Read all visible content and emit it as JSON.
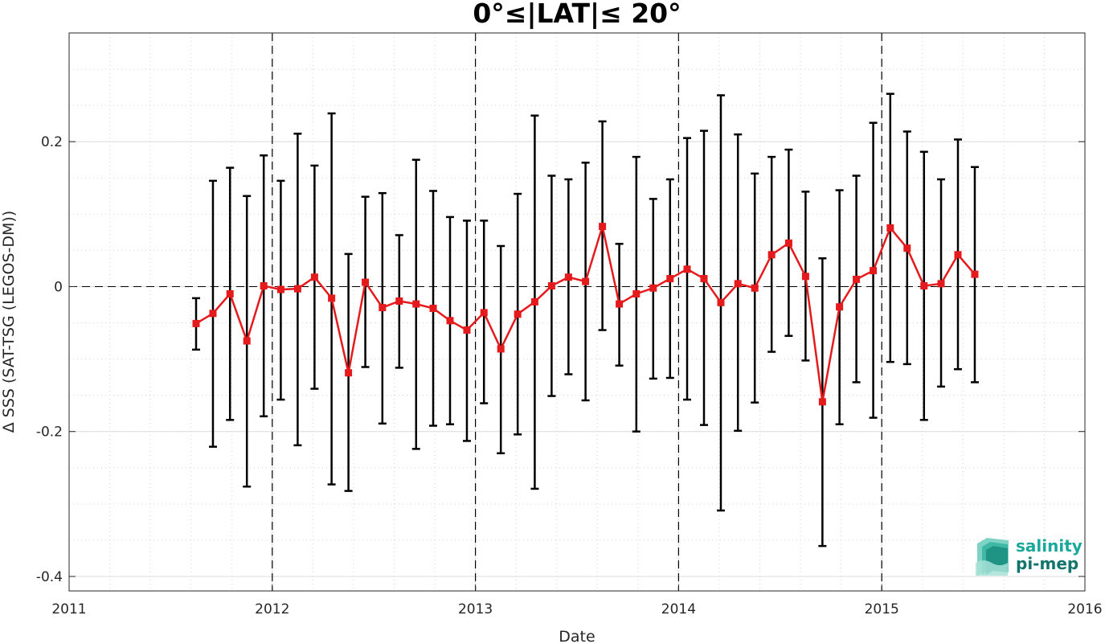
{
  "chart_data": {
    "type": "line",
    "title": "0°≤|LAT|≤ 20°",
    "xlabel": "Date",
    "ylabel": "Δ SSS (SAT-TSG (LEGOS-DM))",
    "xlim": [
      2011,
      2016
    ],
    "ylim": [
      -0.42,
      0.35
    ],
    "x_ticks": [
      2011,
      2012,
      2013,
      2014,
      2015,
      2016
    ],
    "x_tick_labels": [
      "2011",
      "2012",
      "2013",
      "2014",
      "2015",
      "2016"
    ],
    "y_ticks": [
      -0.4,
      -0.2,
      0,
      0.2
    ],
    "y_tick_labels": [
      "-0.4",
      "-0.2",
      "0",
      "0.2"
    ],
    "grid": true,
    "year_markers": [
      2012,
      2013,
      2014,
      2015
    ],
    "zero_line": 0,
    "series": [
      {
        "color": "#e41a1c",
        "errorbar_color": "#000000",
        "x": [
          2011.625,
          2011.708,
          2011.792,
          2011.875,
          2011.958,
          2012.042,
          2012.125,
          2012.208,
          2012.292,
          2012.375,
          2012.458,
          2012.542,
          2012.625,
          2012.708,
          2012.792,
          2012.875,
          2012.958,
          2013.042,
          2013.125,
          2013.208,
          2013.292,
          2013.375,
          2013.458,
          2013.542,
          2013.625,
          2013.708,
          2013.792,
          2013.875,
          2013.958,
          2014.042,
          2014.125,
          2014.208,
          2014.292,
          2014.375,
          2014.458,
          2014.542,
          2014.625,
          2014.708,
          2014.792,
          2014.875,
          2014.958,
          2015.042,
          2015.125,
          2015.208,
          2015.292,
          2015.375,
          2015.458
        ],
        "y": [
          -0.051,
          -0.037,
          -0.01,
          -0.075,
          0.001,
          -0.004,
          -0.003,
          0.013,
          -0.016,
          -0.119,
          0.006,
          -0.029,
          -0.02,
          -0.024,
          -0.03,
          -0.047,
          -0.06,
          -0.036,
          -0.086,
          -0.038,
          -0.021,
          0.001,
          0.013,
          0.007,
          0.083,
          -0.024,
          -0.01,
          -0.002,
          0.011,
          0.024,
          0.011,
          -0.022,
          0.004,
          -0.002,
          0.044,
          0.06,
          0.014,
          -0.159,
          -0.028,
          0.01,
          0.022,
          0.081,
          0.053,
          0.001,
          0.004,
          0.044,
          0.017
        ],
        "y_low": [
          -0.087,
          -0.221,
          -0.184,
          -0.276,
          -0.179,
          -0.156,
          -0.219,
          -0.141,
          -0.273,
          -0.282,
          -0.111,
          -0.189,
          -0.112,
          -0.224,
          -0.192,
          -0.19,
          -0.213,
          -0.161,
          -0.23,
          -0.204,
          -0.279,
          -0.151,
          -0.121,
          -0.157,
          -0.06,
          -0.109,
          -0.2,
          -0.127,
          -0.126,
          -0.156,
          -0.191,
          -0.309,
          -0.199,
          -0.16,
          -0.09,
          -0.068,
          -0.102,
          -0.358,
          -0.19,
          -0.132,
          -0.181,
          -0.104,
          -0.107,
          -0.184,
          -0.138,
          -0.114,
          -0.132
        ],
        "y_high": [
          -0.016,
          0.146,
          0.164,
          0.125,
          0.181,
          0.146,
          0.211,
          0.167,
          0.239,
          0.045,
          0.124,
          0.129,
          0.071,
          0.175,
          0.132,
          0.096,
          0.091,
          0.091,
          0.056,
          0.128,
          0.236,
          0.153,
          0.148,
          0.171,
          0.228,
          0.059,
          0.179,
          0.121,
          0.148,
          0.205,
          0.215,
          0.264,
          0.21,
          0.156,
          0.179,
          0.189,
          0.131,
          0.039,
          0.133,
          0.153,
          0.226,
          0.266,
          0.214,
          0.186,
          0.148,
          0.203,
          0.165
        ]
      }
    ]
  },
  "logo": {
    "line1": "salinity",
    "line2": "pi-mep",
    "color_line1": "#1aa89a",
    "color_line2": "#12756c"
  }
}
